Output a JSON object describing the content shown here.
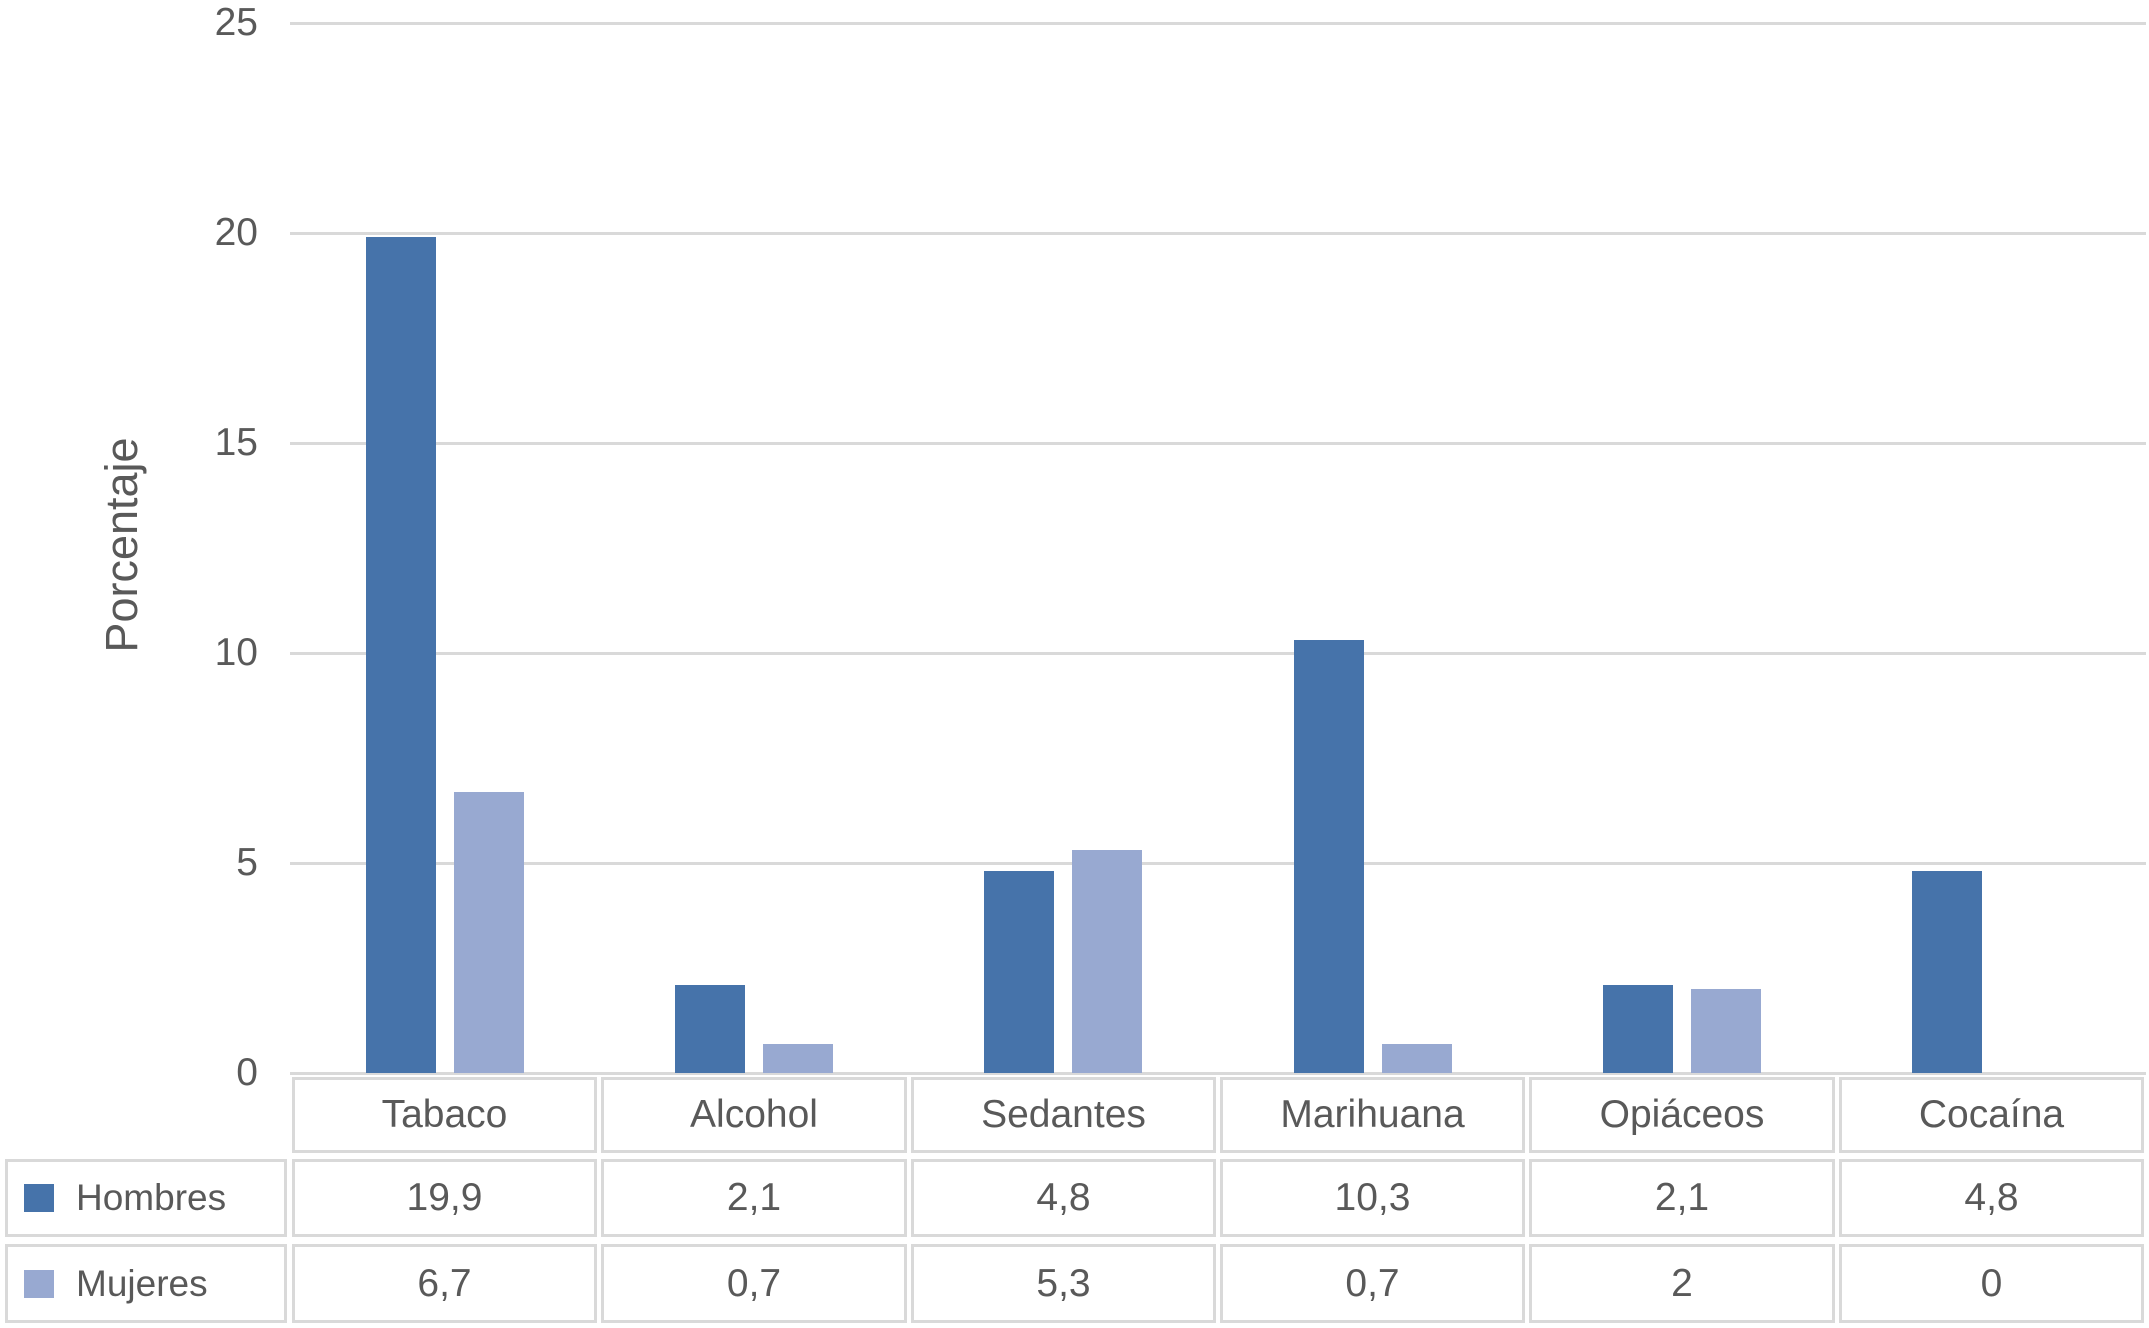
{
  "chart_data": {
    "type": "bar",
    "title": "",
    "categories": [
      "Tabaco",
      "Alcohol",
      "Sedantes",
      "Marihuana",
      "Opiáceos",
      "Cocaína"
    ],
    "series": [
      {
        "name": "Hombres",
        "color": "#4673aa",
        "values": [
          19.9,
          2.1,
          4.8,
          10.3,
          2.1,
          4.8
        ],
        "display": [
          "19,9",
          "2,1",
          "4,8",
          "10,3",
          "2,1",
          "4,8"
        ]
      },
      {
        "name": "Mujeres",
        "color": "#98a9d1",
        "values": [
          6.7,
          0.7,
          5.3,
          0.7,
          2,
          0
        ],
        "display": [
          "6,7",
          "0,7",
          "5,3",
          "0,7",
          "2",
          "0"
        ]
      }
    ],
    "xlabel": "",
    "ylabel": "Porcentaje",
    "ylim": [
      0,
      25
    ],
    "yticks": [
      0,
      5,
      10,
      15,
      20,
      25
    ],
    "grid": true,
    "legend_position": "data-table-left",
    "data_table": true,
    "colors": {
      "grid": "#d9d9d9",
      "table_border": "#d9d9d9",
      "text": "#595959",
      "background": "#ffffff"
    }
  }
}
